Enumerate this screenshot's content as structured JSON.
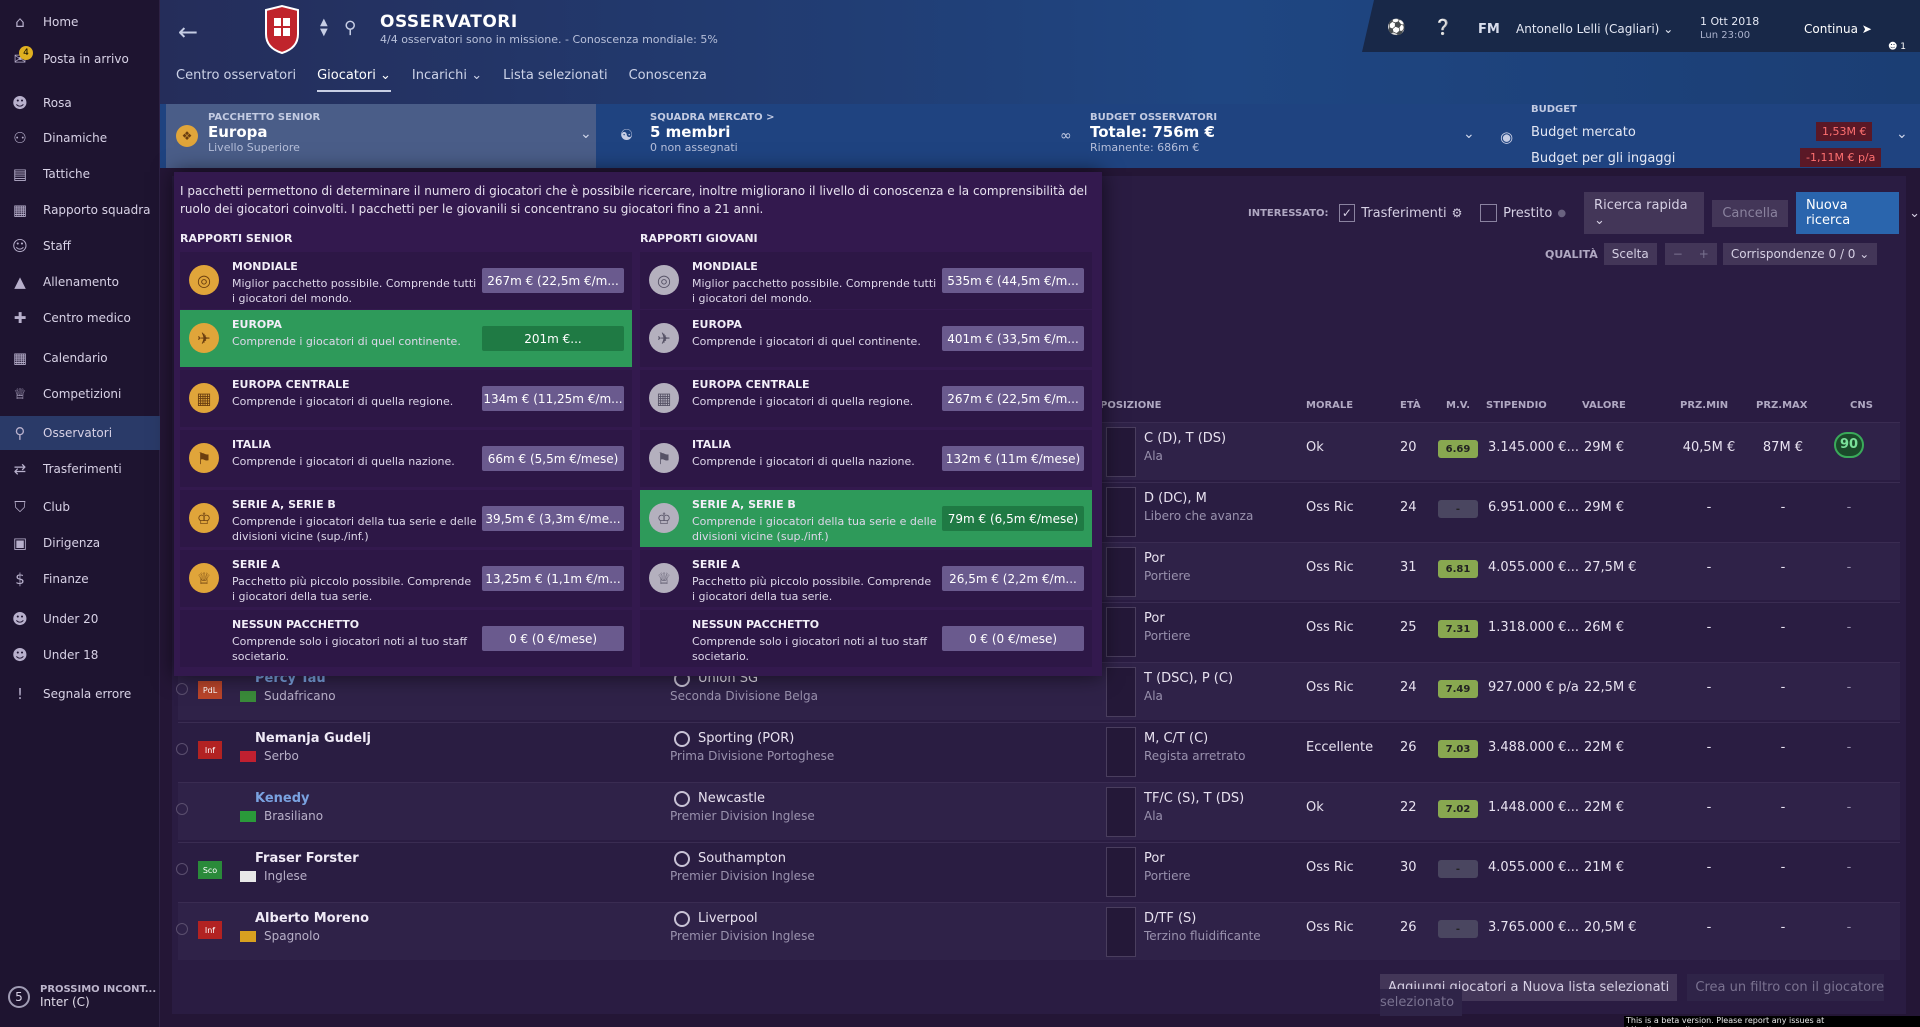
{
  "sidebar": {
    "items": [
      {
        "label": "Home",
        "icon": "home-icon"
      },
      {
        "label": "Posta in arrivo",
        "icon": "inbox-icon",
        "badge": "4"
      },
      {
        "label": "Rosa",
        "icon": "squad-icon"
      },
      {
        "label": "Dinamiche",
        "icon": "dynamics-icon"
      },
      {
        "label": "Tattiche",
        "icon": "tactics-icon"
      },
      {
        "label": "Rapporto squadra",
        "icon": "report-icon"
      },
      {
        "label": "Staff",
        "icon": "staff-icon"
      },
      {
        "label": "Allenamento",
        "icon": "training-icon"
      },
      {
        "label": "Centro medico",
        "icon": "medical-icon"
      },
      {
        "label": "Calendario",
        "icon": "calendar-icon"
      },
      {
        "label": "Competizioni",
        "icon": "trophy-icon"
      },
      {
        "label": "Osservatori",
        "icon": "search-icon"
      },
      {
        "label": "Trasferimenti",
        "icon": "transfer-icon"
      },
      {
        "label": "Club",
        "icon": "shield-icon"
      },
      {
        "label": "Dirigenza",
        "icon": "briefcase-icon"
      },
      {
        "label": "Finanze",
        "icon": "finance-icon"
      },
      {
        "label": "Under 20",
        "icon": "u20-icon"
      },
      {
        "label": "Under 18",
        "icon": "u18-icon"
      },
      {
        "label": "Segnala errore",
        "icon": "bug-icon"
      }
    ],
    "next_match": {
      "number": "5",
      "label": "PROSSIMO INCONT...",
      "opponent": "Inter (C)"
    }
  },
  "header": {
    "title": "OSSERVATORI",
    "subtitle": "4/4 osservatori sono in missione. - Conoscenza mondiale: 5%",
    "tabs": [
      "Centro osservatori",
      "Giocatori",
      "Incarichi",
      "Lista selezionati",
      "Conoscenza"
    ],
    "fm": "FM",
    "manager": "Antonello Lelli (Cagliari)",
    "date": "1 Ott 2018",
    "time": "Lun 23:00",
    "continue": "Continua",
    "notif": "1"
  },
  "summary": {
    "package": {
      "label": "PACCHETTO SENIOR",
      "value": "Europa",
      "sub": "Livello Superiore"
    },
    "team": {
      "label": "SQUADRA MERCATO >",
      "value": "5 membri",
      "sub": "0 non assegnati"
    },
    "scout_budget": {
      "label": "BUDGET OSSERVATORI",
      "value": "Totale: 756m €",
      "sub": "Rimanente: 686m €"
    },
    "budget": {
      "label": "BUDGET",
      "transfer": "Budget mercato",
      "transfer_val": "1,53M €",
      "wages": "Budget per gli ingaggi",
      "wages_val": "-1,11M € p/a"
    }
  },
  "filters": {
    "interested": "INTERESSATO:",
    "transfers": "Trasferimenti",
    "loan": "Prestito",
    "quick": "Ricerca rapida",
    "cancel": "Cancella",
    "new": "Nuova ricerca",
    "quality": "QUALITÀ",
    "choice": "Scelta",
    "matches": "Corrispondenze 0 / 0"
  },
  "columns": [
    "POSIZIONE",
    "MORALE",
    "ETÀ",
    "M.V.",
    "STIPENDIO",
    "VALORE",
    "PRZ.MIN",
    "PRZ.MAX",
    "CNS"
  ],
  "players": [
    {
      "name": "",
      "nat": "",
      "club": "",
      "league": "",
      "pos": "C (D), T (DS)",
      "role": "Ala",
      "morale": "Ok",
      "age": "20",
      "mv": "6.69",
      "salary": "3.145.000 €...",
      "value": "29M €",
      "pmin": "40,5M €",
      "pmax": "87M €",
      "cns": "90"
    },
    {
      "name": "",
      "nat": "",
      "club": "",
      "league": "",
      "pos": "D (DC), M",
      "role": "Libero che avanza",
      "morale": "Oss Ric",
      "age": "24",
      "mv": "-",
      "salary": "6.951.000 €...",
      "value": "29M €",
      "pmin": "-",
      "pmax": "-",
      "cns": "-"
    },
    {
      "name": "",
      "nat": "",
      "club": "",
      "league": "",
      "pos": "Por",
      "role": "Portiere",
      "morale": "Oss Ric",
      "age": "31",
      "mv": "6.81",
      "salary": "4.055.000 €...",
      "value": "27,5M €",
      "pmin": "-",
      "pmax": "-",
      "cns": "-"
    },
    {
      "name": "",
      "nat": "",
      "club": "",
      "league": "",
      "pos": "Por",
      "role": "Portiere",
      "morale": "Oss Ric",
      "age": "25",
      "mv": "7.31",
      "salary": "1.318.000 €...",
      "value": "26M €",
      "pmin": "-",
      "pmax": "-",
      "cns": "-"
    },
    {
      "name": "Percy Tau",
      "nat": "Sudafricano",
      "club": "Union SG",
      "league": "Seconda Divisione Belga",
      "tag": "PdL",
      "pos": "T (DSC), P (C)",
      "role": "Ala",
      "morale": "Oss Ric",
      "age": "24",
      "mv": "7.49",
      "salary": "927.000 € p/a",
      "value": "22,5M €",
      "pmin": "-",
      "pmax": "-",
      "cns": "-"
    },
    {
      "name": "Nemanja Gudelj",
      "nat": "Serbo",
      "club": "Sporting (POR)",
      "league": "Prima Divisione Portoghese",
      "tag": "Inf",
      "pos": "M, C/T (C)",
      "role": "Regista arretrato",
      "morale": "Eccellente",
      "age": "26",
      "mv": "7.03",
      "salary": "3.488.000 €...",
      "value": "22M €",
      "pmin": "-",
      "pmax": "-",
      "cns": "-"
    },
    {
      "name": "Kenedy",
      "nat": "Brasiliano",
      "club": "Newcastle",
      "league": "Premier Division Inglese",
      "tag": "",
      "pos": "TF/C (S), T (DS)",
      "role": "Ala",
      "morale": "Ok",
      "age": "22",
      "mv": "7.02",
      "salary": "1.448.000 €...",
      "value": "22M €",
      "pmin": "-",
      "pmax": "-",
      "cns": "-"
    },
    {
      "name": "Fraser Forster",
      "nat": "Inglese",
      "club": "Southampton",
      "league": "Premier Division Inglese",
      "tag": "Sco",
      "pos": "Por",
      "role": "Portiere",
      "morale": "Oss Ric",
      "age": "30",
      "mv": "-",
      "salary": "4.055.000 €...",
      "value": "21M €",
      "pmin": "-",
      "pmax": "-",
      "cns": "-"
    },
    {
      "name": "Alberto Moreno",
      "nat": "Spagnolo",
      "club": "Liverpool",
      "league": "Premier Division Inglese",
      "tag": "Inf",
      "pos": "D/TF (S)",
      "role": "Terzino fluidificante",
      "morale": "Oss Ric",
      "age": "26",
      "mv": "-",
      "salary": "3.765.000 €...",
      "value": "20,5M €",
      "pmin": "-",
      "pmax": "-",
      "cns": "-"
    }
  ],
  "bottom": {
    "add": "Aggiungi giocatori a Nuova lista selezionati",
    "filter": "Crea un filtro con il giocatore selezionato"
  },
  "overlay": {
    "text": "I pacchetti permettono di determinare il numero di giocatori che è possibile ricercare, inoltre migliorano il livello di conoscenza e la comprensibilità del ruolo dei giocatori coinvolti. I pacchetti per le giovanili si concentrano su giocatori fino a 21 anni.",
    "senior_title": "RAPPORTI SENIOR",
    "youth_title": "RAPPORTI GIOVANI",
    "senior": [
      {
        "title": "MONDIALE",
        "desc": "Miglior pacchetto possibile. Comprende tutti i giocatori del mondo.",
        "price": "267m € (22,5m €/m..."
      },
      {
        "title": "EUROPA",
        "desc": "Comprende i giocatori di quel continente.",
        "price": "201m €..."
      },
      {
        "title": "EUROPA CENTRALE",
        "desc": "Comprende i giocatori di quella regione.",
        "price": "134m € (11,25m €/m..."
      },
      {
        "title": "ITALIA",
        "desc": "Comprende i giocatori di quella nazione.",
        "price": "66m € (5,5m €/mese)"
      },
      {
        "title": "SERIE A, SERIE B",
        "desc": "Comprende i giocatori della tua serie e delle divisioni vicine (sup./inf.)",
        "price": "39,5m € (3,3m €/me..."
      },
      {
        "title": "SERIE A",
        "desc": "Pacchetto più piccolo possibile. Comprende i giocatori della tua serie.",
        "price": "13,25m € (1,1m €/m..."
      },
      {
        "title": "NESSUN PACCHETTO",
        "desc": "Comprende solo i giocatori noti al tuo staff societario.",
        "price": "0 € (0 €/mese)"
      }
    ],
    "youth": [
      {
        "title": "MONDIALE",
        "desc": "Miglior pacchetto possibile. Comprende tutti i giocatori del mondo.",
        "price": "535m € (44,5m €/m..."
      },
      {
        "title": "EUROPA",
        "desc": "Comprende i giocatori di quel continente.",
        "price": "401m € (33,5m €/m..."
      },
      {
        "title": "EUROPA CENTRALE",
        "desc": "Comprende i giocatori di quella regione.",
        "price": "267m € (22,5m €/m..."
      },
      {
        "title": "ITALIA",
        "desc": "Comprende i giocatori di quella nazione.",
        "price": "132m € (11m €/mese)"
      },
      {
        "title": "SERIE A, SERIE B",
        "desc": "Comprende i giocatori della tua serie e delle divisioni vicine (sup./inf.)",
        "price": "79m € (6,5m €/mese)"
      },
      {
        "title": "SERIE A",
        "desc": "Pacchetto più piccolo possibile. Comprende i giocatori della tua serie.",
        "price": "26,5m € (2,2m €/m..."
      },
      {
        "title": "NESSUN PACCHETTO",
        "desc": "Comprende solo i giocatori noti al tuo staff societario.",
        "price": "0 € (0 €/mese)"
      }
    ]
  },
  "beta": "This is a beta version. Please report any issues at http://community.sigames.com",
  "colors": {
    "accent_green": "#2e9a5a",
    "accent_blue": "#2a65ad",
    "gold": "#e0a53a"
  }
}
